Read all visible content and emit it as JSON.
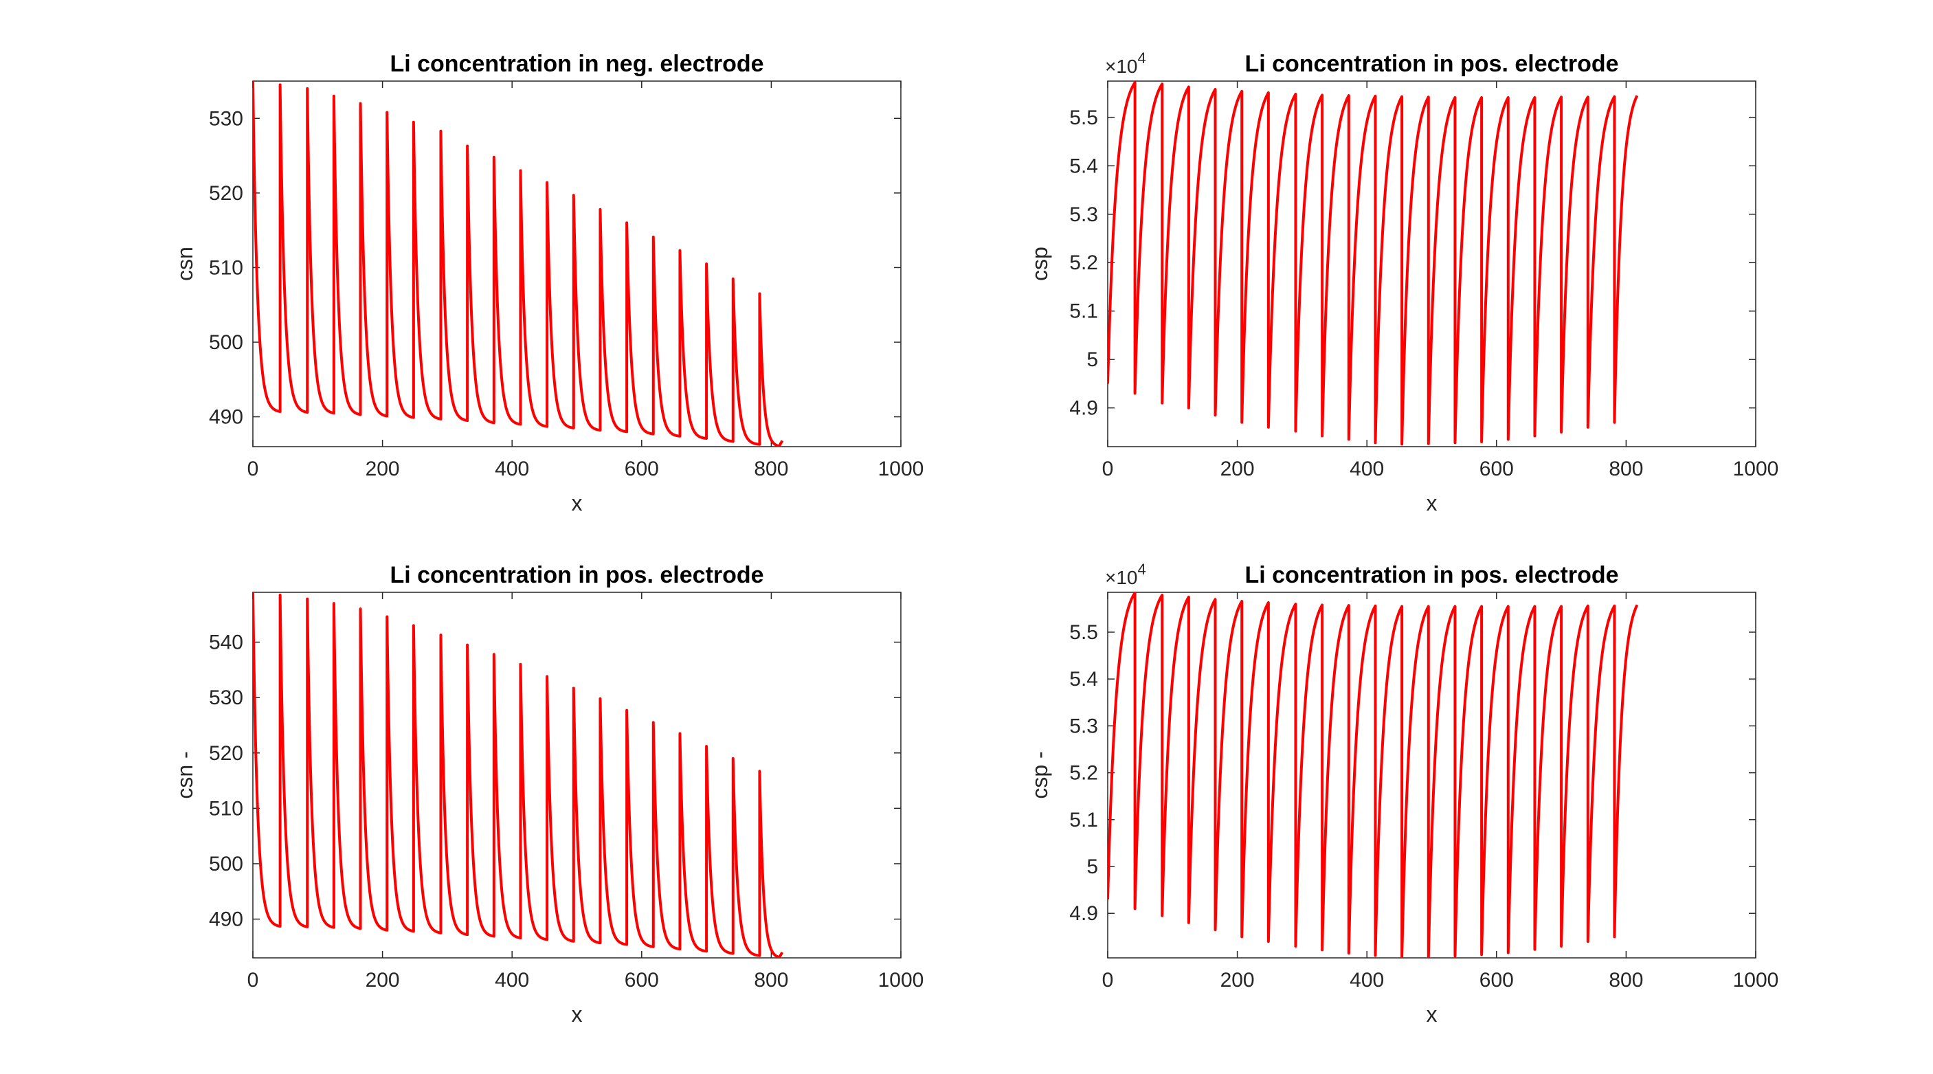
{
  "figure": {
    "background": "#ffffff",
    "line_color": "#ff0000"
  },
  "chart_data": [
    {
      "type": "line",
      "title": "Li concentration in neg. electrode",
      "xlabel": "x",
      "ylabel": "csn",
      "xlim": [
        0,
        1000
      ],
      "ylim": [
        486,
        535
      ],
      "xticks": [
        0,
        200,
        400,
        600,
        800,
        1000
      ],
      "yticks": [
        490,
        500,
        510,
        520,
        530
      ],
      "exponent_label": "",
      "series": [
        {
          "pattern": "decaying_sawtooth",
          "x_start": 0,
          "x_end": 817,
          "cycle_peak_x": [
            0,
            42,
            84,
            125,
            166,
            207,
            248,
            290,
            331,
            372,
            413,
            454,
            495,
            536,
            577,
            618,
            659,
            700,
            741,
            782
          ],
          "cycle_peak_y": [
            535,
            534.5,
            534,
            533,
            532,
            530.8,
            529.5,
            528.3,
            526.3,
            524.8,
            523,
            521.4,
            519.7,
            517.8,
            516,
            514.1,
            512.3,
            510.5,
            508.5,
            506.5
          ],
          "cycle_min_y": [
            490.7,
            490.6,
            490.5,
            490.3,
            490.1,
            489.9,
            489.7,
            489.5,
            489.2,
            489,
            488.7,
            488.5,
            488.2,
            488,
            487.7,
            487.4,
            487.1,
            486.7,
            486.3,
            486
          ],
          "tail_end_y": 486.8
        }
      ]
    },
    {
      "type": "line",
      "title": "Li concentration in pos. electrode",
      "xlabel": "x",
      "ylabel": "csp",
      "xlim": [
        0,
        1000
      ],
      "ylim": [
        48200,
        55750
      ],
      "xticks": [
        0,
        200,
        400,
        600,
        800,
        1000
      ],
      "yticks": [
        48600,
        49000,
        50000,
        51000,
        52000,
        53000,
        54000,
        55000
      ],
      "ytick_labels": [
        "4.9",
        "5",
        "5.1",
        "5.2",
        "5.3",
        "5.4",
        "5.5"
      ],
      "ytick_values": [
        49000,
        50000,
        51000,
        52000,
        53000,
        54000,
        55000
      ],
      "exponent_label": "×10",
      "exponent_power": "4",
      "series": [
        {
          "pattern": "rising_sawtooth",
          "x_start": 0,
          "x_end": 817,
          "start_y": 49500,
          "cycle_drop_x": [
            42,
            84,
            125,
            166,
            207,
            248,
            290,
            331,
            372,
            413,
            454,
            495,
            536,
            577,
            618,
            659,
            700,
            741,
            782
          ],
          "cycle_max_y": [
            55720,
            55690,
            55630,
            55580,
            55540,
            55510,
            55480,
            55460,
            55450,
            55440,
            55430,
            55420,
            55410,
            55410,
            55410,
            55410,
            55420,
            55420,
            55430
          ],
          "cycle_min_y": [
            49300,
            49100,
            49000,
            48850,
            48700,
            48600,
            48520,
            48420,
            48350,
            48280,
            48250,
            48260,
            48280,
            48300,
            48350,
            48420,
            48500,
            48600,
            48700
          ],
          "tail_end_y": 55450
        }
      ]
    },
    {
      "type": "line",
      "title": "Li concentration in pos. electrode",
      "xlabel": "x",
      "ylabel": "csn -",
      "xlim": [
        0,
        1000
      ],
      "ylim": [
        483,
        549
      ],
      "xticks": [
        0,
        200,
        400,
        600,
        800,
        1000
      ],
      "yticks": [
        490,
        500,
        510,
        520,
        530,
        540
      ],
      "exponent_label": "",
      "series": [
        {
          "pattern": "decaying_sawtooth",
          "x_start": 0,
          "x_end": 817,
          "cycle_peak_x": [
            0,
            42,
            84,
            125,
            166,
            207,
            248,
            290,
            331,
            372,
            413,
            454,
            495,
            536,
            577,
            618,
            659,
            700,
            741,
            782
          ],
          "cycle_peak_y": [
            549,
            548.5,
            547.8,
            547,
            546,
            544.6,
            543,
            541.3,
            539.5,
            537.8,
            536,
            533.8,
            531.7,
            529.8,
            527.7,
            525.5,
            523.5,
            521.2,
            519,
            516.7
          ],
          "cycle_min_y": [
            488.7,
            488.6,
            488.5,
            488.3,
            488,
            487.8,
            487.5,
            487.2,
            486.9,
            486.6,
            486.3,
            486,
            485.7,
            485.4,
            485,
            484.6,
            484.2,
            483.8,
            483.4,
            483
          ],
          "tail_end_y": 484
        }
      ]
    },
    {
      "type": "line",
      "title": "Li concentration in pos. electrode",
      "xlabel": "x",
      "ylabel": "csp -",
      "xlim": [
        0,
        1000
      ],
      "ylim": [
        48050,
        55850
      ],
      "xticks": [
        0,
        200,
        400,
        600,
        800,
        1000
      ],
      "ytick_labels": [
        "4.9",
        "5",
        "5.1",
        "5.2",
        "5.3",
        "5.4",
        "5.5"
      ],
      "ytick_values": [
        49000,
        50000,
        51000,
        52000,
        53000,
        54000,
        55000
      ],
      "exponent_label": "×10",
      "exponent_power": "4",
      "series": [
        {
          "pattern": "rising_sawtooth",
          "x_start": 0,
          "x_end": 817,
          "start_y": 49300,
          "cycle_drop_x": [
            42,
            84,
            125,
            166,
            207,
            248,
            290,
            331,
            372,
            413,
            454,
            495,
            536,
            577,
            618,
            659,
            700,
            741,
            782
          ],
          "cycle_max_y": [
            55840,
            55790,
            55750,
            55700,
            55660,
            55630,
            55600,
            55580,
            55570,
            55560,
            55550,
            55550,
            55550,
            55550,
            55550,
            55550,
            55550,
            55560,
            55560
          ],
          "cycle_min_y": [
            49100,
            48950,
            48800,
            48650,
            48500,
            48400,
            48300,
            48220,
            48150,
            48100,
            48060,
            48060,
            48090,
            48120,
            48160,
            48230,
            48300,
            48400,
            48500
          ],
          "tail_end_y": 55580
        }
      ]
    }
  ]
}
